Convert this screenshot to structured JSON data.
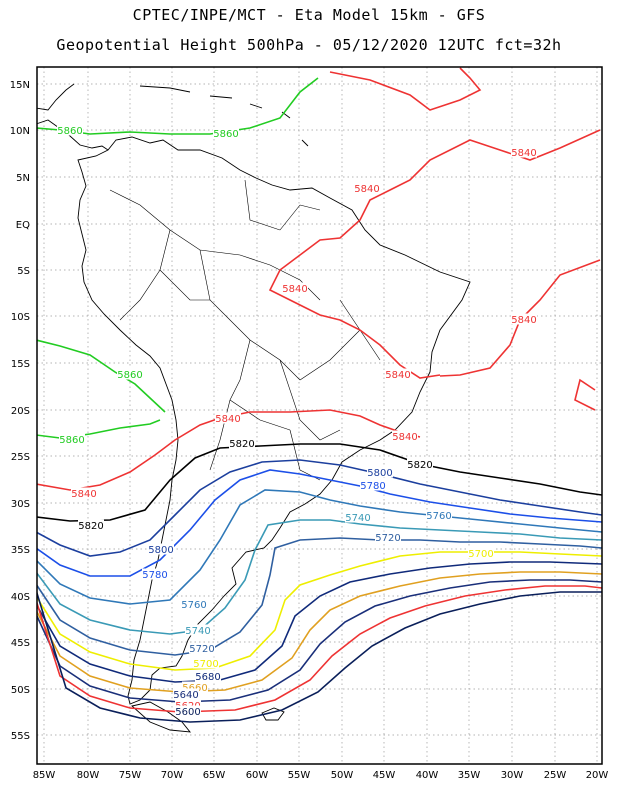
{
  "header": {
    "line1": "CPTEC/INPE/MCT -  Eta Model 15km - GFS",
    "line2": "Geopotential Height 500hPa - 05/12/2020 12UTC fct=32h"
  },
  "axes": {
    "lat_labels": [
      "15N",
      "10N",
      "5N",
      "EQ",
      "5S",
      "10S",
      "15S",
      "20S",
      "25S",
      "30S",
      "35S",
      "40S",
      "45S",
      "50S",
      "55S"
    ],
    "lon_labels": [
      "85W",
      "80W",
      "75W",
      "70W",
      "65W",
      "60W",
      "55W",
      "50W",
      "45W",
      "40W",
      "35W",
      "30W",
      "25W",
      "20W"
    ]
  },
  "contour_colors": {
    "5860": "#22cc22",
    "5840": "#ee3333",
    "5820": "#000000",
    "5800": "#1c3f9e",
    "5780": "#1c4fe8",
    "5760": "#2f78b8",
    "5740": "#3a9ab6",
    "5720": "#2f5fa0",
    "5700": "#eeee00",
    "5680": "#102a7a",
    "5660": "#e0a020",
    "5640": "#1a2f7a",
    "5620": "#ee3333",
    "5600": "#0a1f5a"
  },
  "contour_labels": [
    {
      "text": "5860",
      "level": "5860"
    },
    {
      "text": "5860",
      "level": "5860"
    },
    {
      "text": "5860",
      "level": "5860"
    },
    {
      "text": "5860",
      "level": "5860"
    },
    {
      "text": "5840",
      "level": "5840"
    },
    {
      "text": "5840",
      "level": "5840"
    },
    {
      "text": "5840",
      "level": "5840"
    },
    {
      "text": "5840",
      "level": "5840"
    },
    {
      "text": "5840",
      "level": "5840"
    },
    {
      "text": "5840",
      "level": "5840"
    },
    {
      "text": "5840",
      "level": "5840"
    },
    {
      "text": "5840",
      "level": "5840"
    },
    {
      "text": "5820",
      "level": "5820"
    },
    {
      "text": "5820",
      "level": "5820"
    },
    {
      "text": "5820",
      "level": "5820"
    },
    {
      "text": "5800",
      "level": "5800"
    },
    {
      "text": "5800",
      "level": "5800"
    },
    {
      "text": "5780",
      "level": "5780"
    },
    {
      "text": "5780",
      "level": "5780"
    },
    {
      "text": "5760",
      "level": "5760"
    },
    {
      "text": "5760",
      "level": "5760"
    },
    {
      "text": "5740",
      "level": "5740"
    },
    {
      "text": "5740",
      "level": "5740"
    },
    {
      "text": "5720",
      "level": "5720"
    },
    {
      "text": "5720",
      "level": "5720"
    },
    {
      "text": "5700",
      "level": "5700"
    },
    {
      "text": "5700",
      "level": "5700"
    },
    {
      "text": "5680",
      "level": "5680"
    },
    {
      "text": "5660",
      "level": "5660"
    },
    {
      "text": "5640",
      "level": "5640"
    },
    {
      "text": "5620",
      "level": "5620"
    },
    {
      "text": "5600",
      "level": "5600"
    }
  ]
}
